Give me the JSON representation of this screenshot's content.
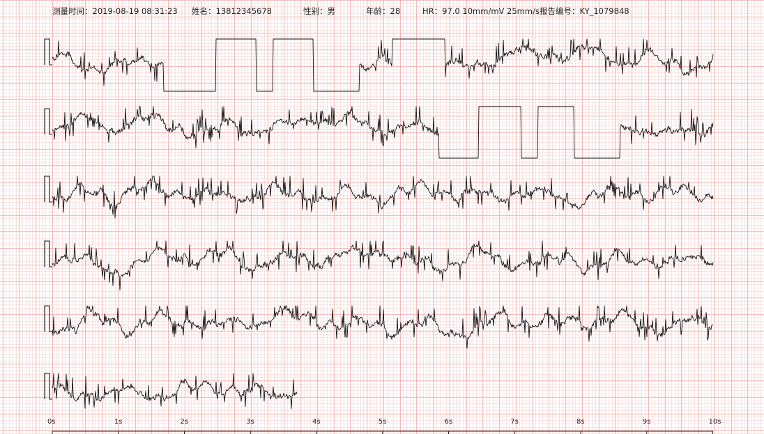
{
  "header": {
    "time_label": "测量时间：",
    "time_value": "2019-08-19 08:31:23",
    "name_label": "姓名：",
    "name_value": "13812345678",
    "gender_label": "性别：",
    "gender_value": "男",
    "age_label": "年龄：",
    "age_value": "28",
    "hr_label": "HR：",
    "hr_value": "97.0",
    "gain": "10mm/mV",
    "speed": "25mm/s",
    "report_label": "报告编号：",
    "report_value": "KY_1079848"
  },
  "colors": {
    "grid_minor": "#f6cccc",
    "grid_major": "#ee9c9c",
    "trace": "#111111",
    "axis": "#222222"
  },
  "chart_data": {
    "type": "line",
    "title": "",
    "xlabel": "",
    "ylabel": "",
    "x_unit": "s",
    "tick_labels": [
      "0s",
      "1s",
      "2s",
      "3s",
      "4s",
      "5s",
      "6s",
      "7s",
      "8s",
      "9s",
      "10s"
    ],
    "xlim": [
      0,
      10
    ],
    "strips": [
      {
        "start": 0,
        "end": 10,
        "plateaus": [
          [
            1.68,
            2.47,
            -1
          ],
          [
            2.47,
            3.09,
            1
          ],
          [
            3.09,
            3.34,
            -1
          ],
          [
            3.34,
            3.95,
            1
          ],
          [
            3.95,
            4.65,
            -1
          ],
          [
            5.15,
            5.95,
            1
          ]
        ]
      },
      {
        "start": 0,
        "end": 10,
        "plateaus": [
          [
            5.85,
            6.45,
            -1
          ],
          [
            6.45,
            7.1,
            1
          ],
          [
            7.1,
            7.35,
            -1
          ],
          [
            7.35,
            7.9,
            1
          ],
          [
            7.9,
            8.6,
            -1
          ]
        ]
      },
      {
        "start": 0,
        "end": 10,
        "plateaus": []
      },
      {
        "start": 0,
        "end": 10,
        "plateaus": []
      },
      {
        "start": 0,
        "end": 10,
        "plateaus": []
      },
      {
        "start": 0,
        "end": 3.7,
        "plateaus": []
      }
    ]
  }
}
